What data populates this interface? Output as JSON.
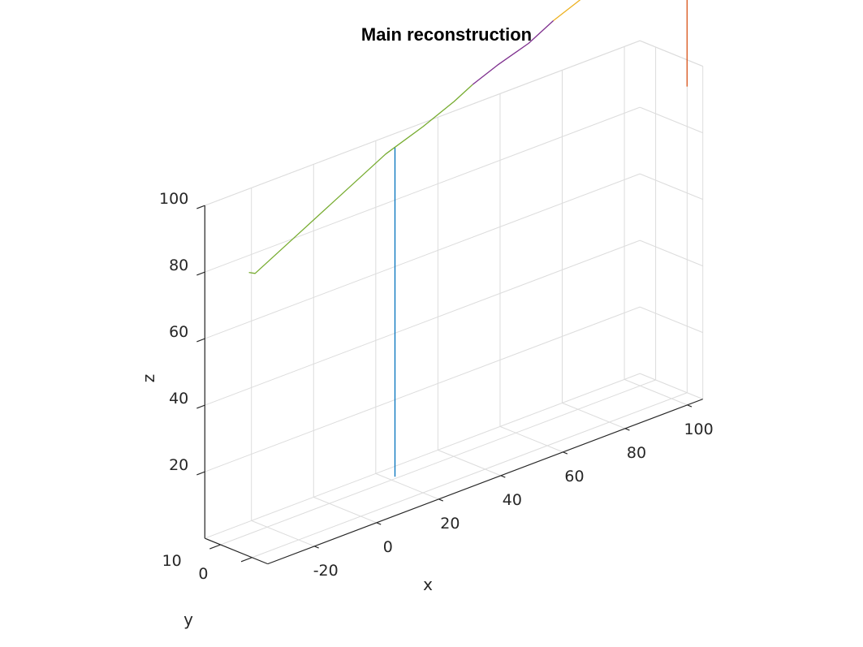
{
  "chart_data": {
    "type": "line3d",
    "title": "Main reconstruction",
    "xlabel": "x",
    "ylabel": "y",
    "zlabel": "z",
    "xlim": [
      -35,
      105
    ],
    "ylim": [
      -5,
      15
    ],
    "zlim": [
      0,
      100
    ],
    "x_ticks": [
      -20,
      0,
      20,
      40,
      60,
      80,
      100
    ],
    "y_ticks": [
      0,
      10
    ],
    "z_ticks": [
      20,
      40,
      60,
      80,
      100
    ],
    "x_tick_labels": [
      "-20",
      "0",
      "20",
      "40",
      "60",
      "80",
      "100"
    ],
    "y_tick_labels": [
      "0",
      "10"
    ],
    "z_tick_labels": [
      "20",
      "40",
      "60",
      "80",
      "100"
    ],
    "grid": true,
    "series": [
      {
        "color": "#0072BD",
        "points": [
          [
            11,
            0,
            8
          ],
          [
            11,
            0,
            107
          ]
        ]
      },
      {
        "color": "#77AC30",
        "points": [
          [
            -36,
            0,
            86
          ],
          [
            -34,
            0,
            85
          ],
          [
            -28,
            0,
            88
          ],
          [
            -20,
            0,
            92
          ],
          [
            -10,
            0,
            97
          ],
          [
            0,
            0,
            102
          ],
          [
            8,
            0,
            106
          ],
          [
            11,
            0,
            107
          ],
          [
            20,
            0,
            110
          ],
          [
            30,
            0,
            114
          ],
          [
            36,
            0,
            117
          ]
        ]
      },
      {
        "color": "#7E2F8E",
        "points": [
          [
            36,
            0,
            117
          ],
          [
            44,
            0,
            120
          ],
          [
            54,
            0,
            123
          ],
          [
            62,
            0,
            127
          ]
        ]
      },
      {
        "color": "#EDB120",
        "points": [
          [
            62,
            0,
            127
          ],
          [
            70,
            0,
            130
          ],
          [
            80,
            0,
            134
          ],
          [
            90,
            0,
            138
          ],
          [
            96,
            0,
            140
          ],
          [
            101,
            0,
            141
          ],
          [
            103,
            0,
            142
          ],
          [
            105,
            0,
            142
          ]
        ]
      },
      {
        "color": "#D95319",
        "points": [
          [
            105,
            0,
            142
          ],
          [
            105,
            0,
            130
          ],
          [
            105,
            0,
            118
          ],
          [
            105,
            0,
            105
          ],
          [
            105,
            0,
            92
          ]
        ]
      }
    ]
  }
}
